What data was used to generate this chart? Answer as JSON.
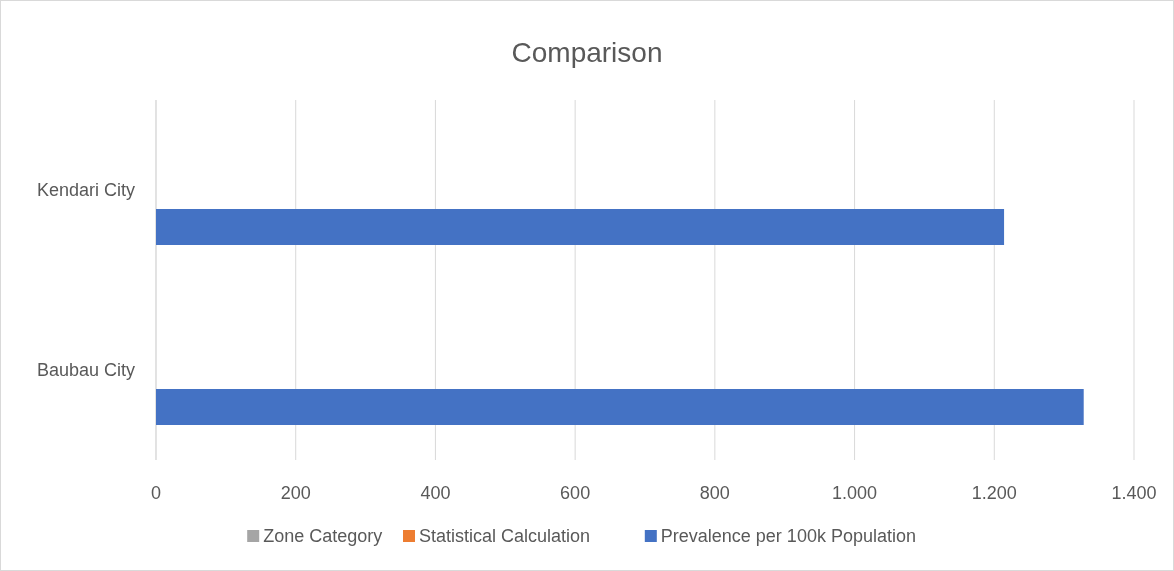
{
  "chart_data": {
    "type": "bar",
    "orientation": "horizontal",
    "title": "Comparison",
    "categories": [
      "Kendari City",
      "Baubau City"
    ],
    "series": [
      {
        "name": "Zone Category",
        "color": "#a5a5a5",
        "values": [
          null,
          null
        ]
      },
      {
        "name": "Statistical Calculation",
        "color": "#ed7d31",
        "values": [
          null,
          null
        ]
      },
      {
        "name": "Prevalence per 100k Population",
        "color": "#4472c4",
        "values": [
          1214,
          1328
        ]
      }
    ],
    "xlim": [
      0,
      1400
    ],
    "xticks": [
      0,
      200,
      400,
      600,
      800,
      {
        "value": 1000,
        "label": "1.000"
      },
      {
        "value": 1200,
        "label": "1.200"
      },
      {
        "value": 1400,
        "label": "1.400"
      }
    ],
    "grid": "x",
    "legend": "bottom"
  }
}
